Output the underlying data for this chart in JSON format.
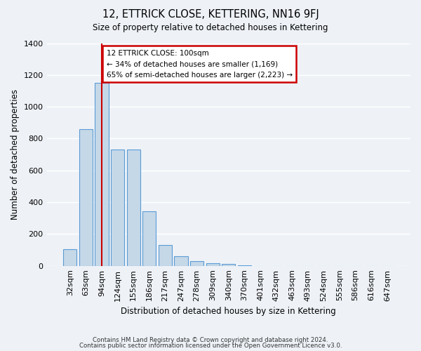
{
  "title": "12, ETTRICK CLOSE, KETTERING, NN16 9FJ",
  "subtitle": "Size of property relative to detached houses in Kettering",
  "xlabel": "Distribution of detached houses by size in Kettering",
  "ylabel": "Number of detached properties",
  "bar_values": [
    105,
    860,
    1150,
    730,
    730,
    345,
    130,
    60,
    30,
    15,
    10,
    5,
    0,
    0,
    0,
    0,
    0,
    0,
    0,
    0,
    0
  ],
  "bar_labels": [
    "32sqm",
    "63sqm",
    "94sqm",
    "124sqm",
    "155sqm",
    "186sqm",
    "217sqm",
    "247sqm",
    "278sqm",
    "309sqm",
    "340sqm",
    "370sqm",
    "401sqm",
    "432sqm",
    "463sqm",
    "493sqm",
    "524sqm",
    "555sqm",
    "586sqm",
    "616sqm",
    "647sqm"
  ],
  "bar_color": "#c5d8e8",
  "bar_edge_color": "#5b9bd5",
  "background_color": "#eef2f7",
  "grid_color": "#ffffff",
  "annotation_text_line1": "12 ETTRICK CLOSE: 100sqm",
  "annotation_text_line2": "← 34% of detached houses are smaller (1,169)",
  "annotation_text_line3": "65% of semi-detached houses are larger (2,223) →",
  "annotation_box_color": "#ffffff",
  "annotation_box_edge_color": "#cc0000",
  "vline_color": "#cc0000",
  "ylim": [
    0,
    1400
  ],
  "yticks": [
    0,
    200,
    400,
    600,
    800,
    1000,
    1200,
    1400
  ],
  "footer1": "Contains HM Land Registry data © Crown copyright and database right 2024.",
  "footer2": "Contains public sector information licensed under the Open Government Licence v3.0."
}
